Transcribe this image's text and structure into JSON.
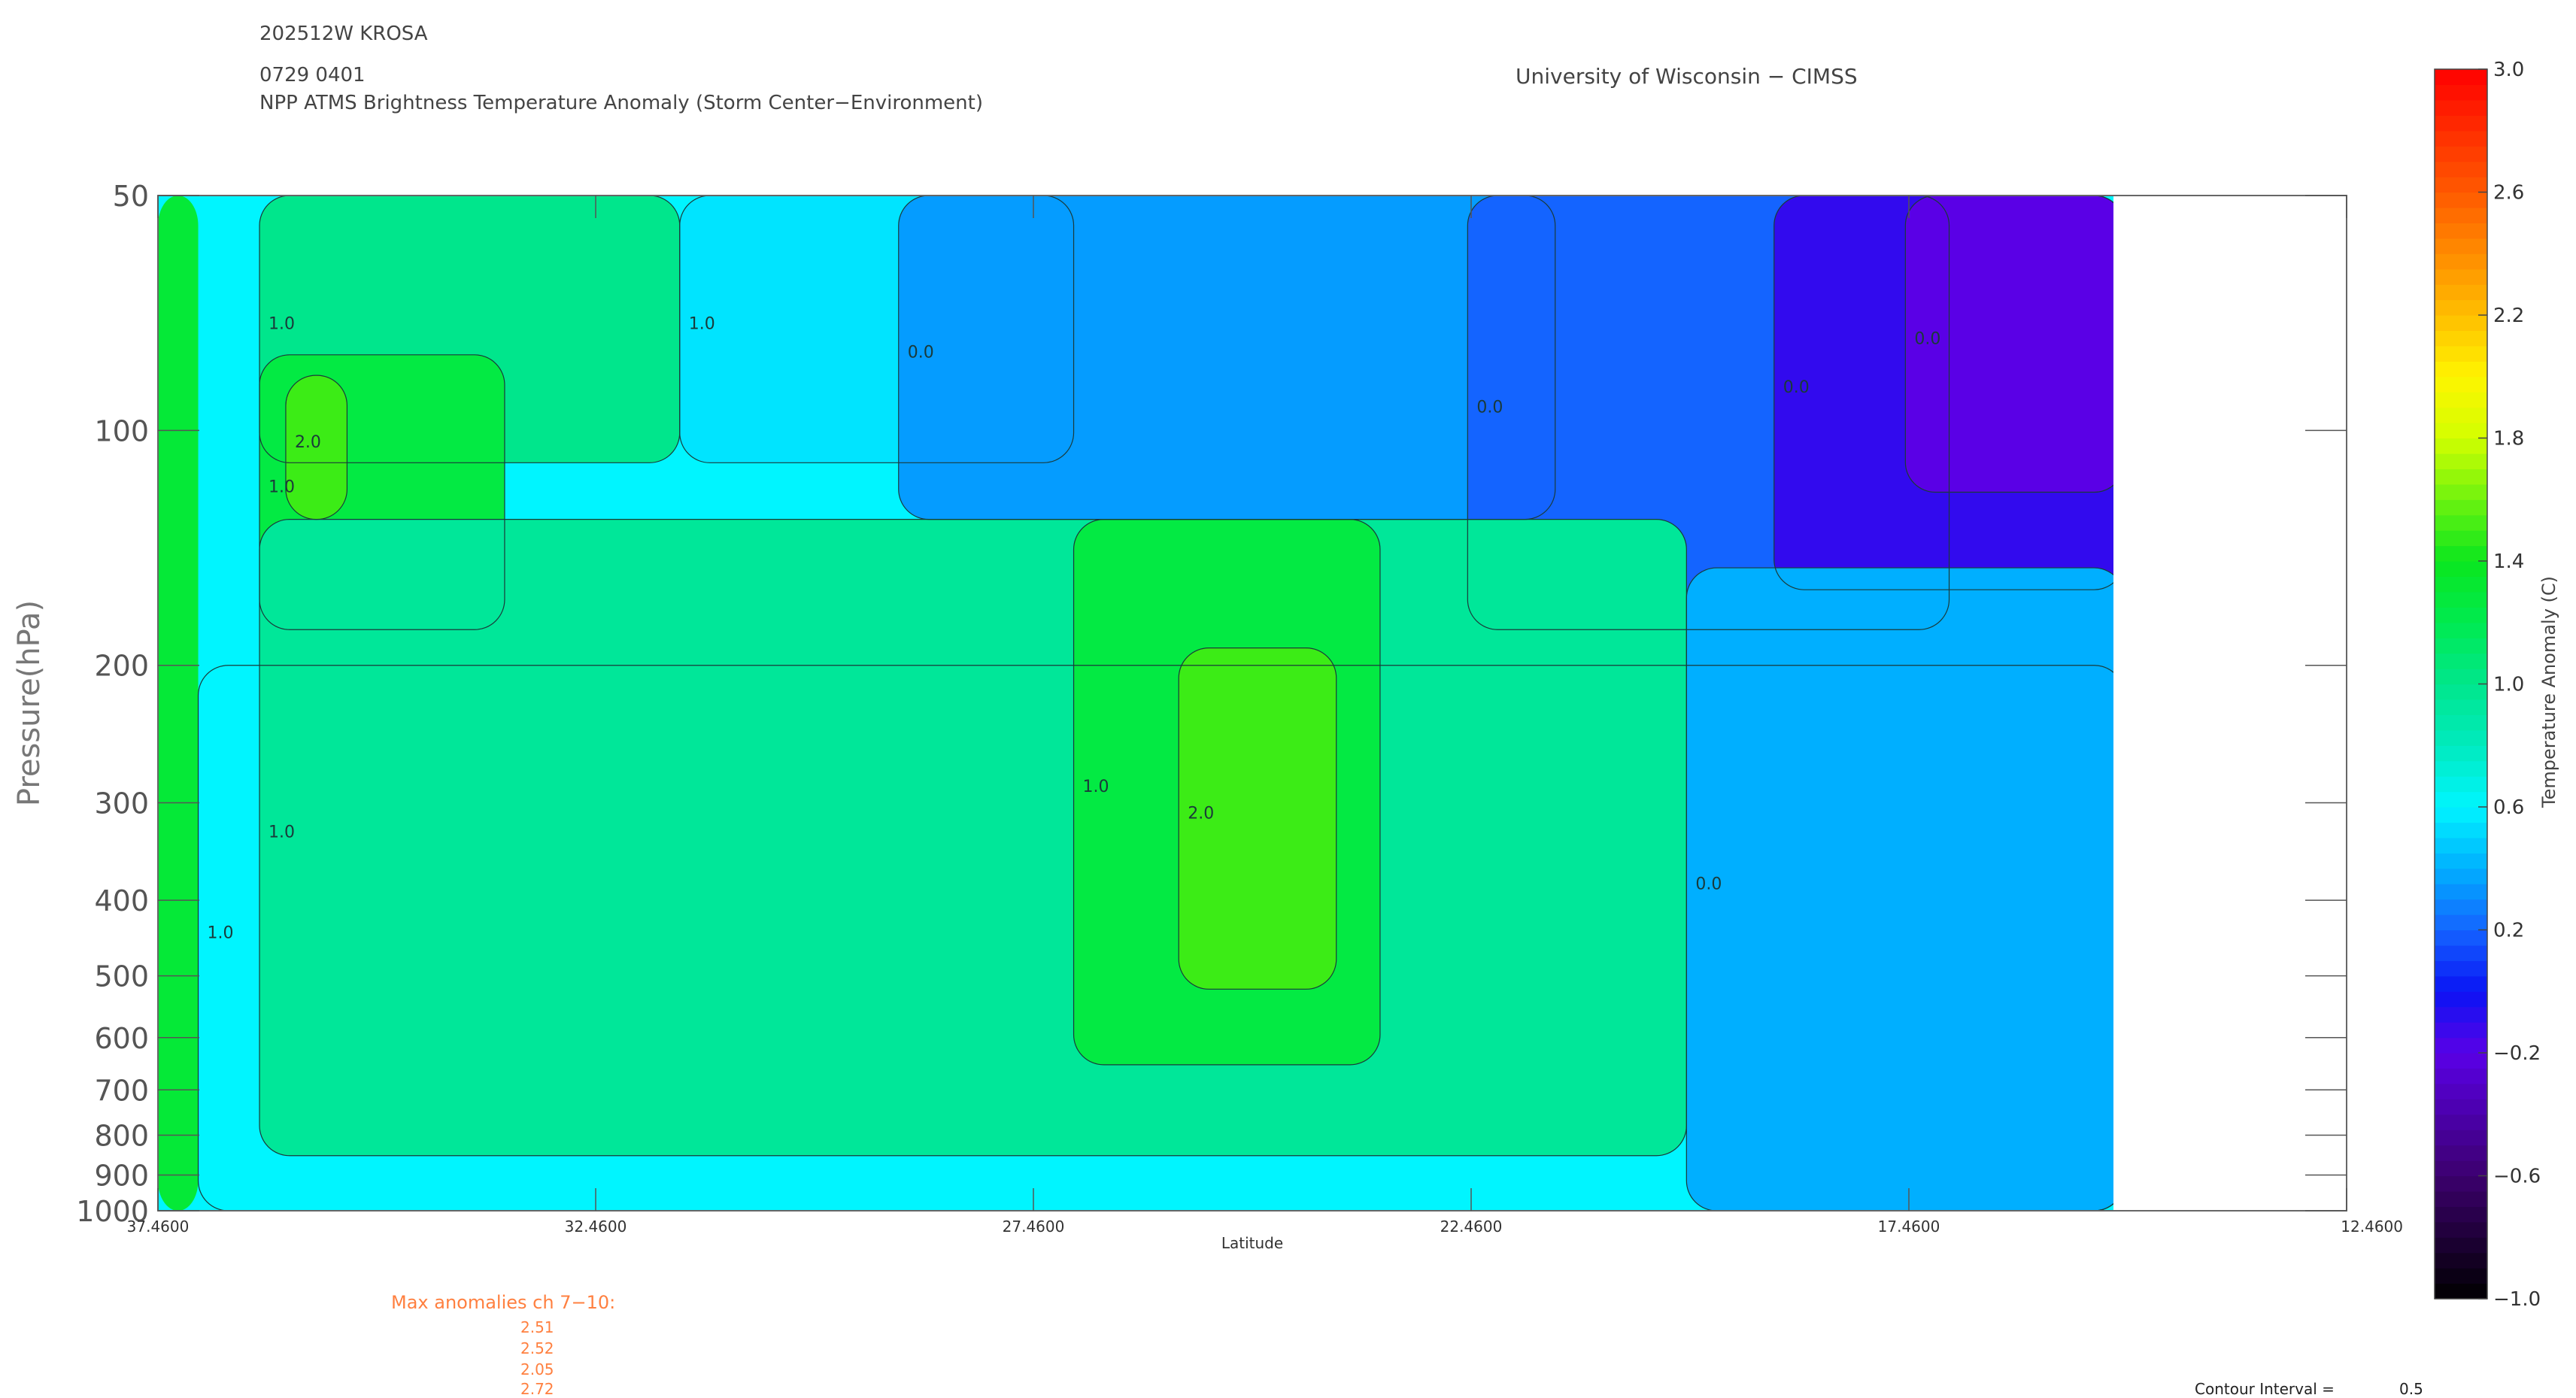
{
  "header": {
    "storm_id": "202512W KROSA",
    "datetime": "0729 0401",
    "product": "NPP ATMS Brightness Temperature Anomaly (Storm Center−Environment)",
    "institution": "University of Wisconsin − CIMSS"
  },
  "chart_data": {
    "type": "heatmap",
    "title": "NPP ATMS Brightness Temperature Anomaly (Storm Center−Environment)",
    "xlabel": "Latitude",
    "ylabel": "Pressure(hPa)",
    "x_ticks": [
      "37.4600",
      "32.4600",
      "27.4600",
      "22.4600",
      "17.4600",
      "12.4600"
    ],
    "xlim": [
      37.46,
      12.46
    ],
    "data_lat_range": [
      37.46,
      15.0
    ],
    "y_ticks": [
      "50",
      "100",
      "200",
      "300",
      "400",
      "500",
      "600",
      "700",
      "800",
      "900",
      "1000"
    ],
    "y_tick_values": [
      50,
      100,
      200,
      300,
      400,
      500,
      600,
      700,
      800,
      900,
      1000
    ],
    "ylim": [
      1000,
      50
    ],
    "y_scale": "log",
    "colorbar": {
      "label": "Temperature Anomaly (C)",
      "ticks": [
        "3.0",
        "2.6",
        "2.2",
        "1.8",
        "1.4",
        "1.0",
        "0.6",
        "0.2",
        "−0.2",
        "−0.6",
        "−1.0"
      ],
      "tick_values": [
        3.0,
        2.6,
        2.2,
        1.8,
        1.4,
        1.0,
        0.6,
        0.2,
        -0.2,
        -0.6,
        -1.0
      ],
      "range": [
        -1.0,
        3.0
      ]
    },
    "contour_labels": [
      "2.0",
      "1.0",
      "0.0"
    ],
    "contour_interval_label": "Contour Interval =",
    "contour_interval": "0.5",
    "max_anomalies_label": "Max anomalies ch 7−10:",
    "max_anomalies": [
      "2.51",
      "2.52",
      "2.05",
      "2.72"
    ],
    "region_values": [
      {
        "lat": [
          37.46,
          37.0
        ],
        "p": [
          50,
          1000
        ],
        "v": 1.3
      },
      {
        "lat": [
          36.3,
          31.5
        ],
        "p": [
          50,
          110
        ],
        "v": 1.0
      },
      {
        "lat": [
          36.3,
          33.5
        ],
        "p": [
          80,
          180
        ],
        "v": 1.25
      },
      {
        "lat": [
          36.0,
          35.3
        ],
        "p": [
          85,
          130
        ],
        "v": 1.5
      },
      {
        "lat": [
          31.5,
          27.0
        ],
        "p": [
          50,
          110
        ],
        "v": 0.55
      },
      {
        "lat": [
          29.0,
          21.5
        ],
        "p": [
          50,
          130
        ],
        "v": 0.35
      },
      {
        "lat": [
          22.5,
          17.0
        ],
        "p": [
          50,
          180
        ],
        "v": 0.2
      },
      {
        "lat": [
          19.0,
          15.0
        ],
        "p": [
          50,
          160
        ],
        "v": -0.1
      },
      {
        "lat": [
          17.5,
          15.0
        ],
        "p": [
          50,
          120
        ],
        "v": -0.2
      },
      {
        "lat": [
          37.0,
          15.0
        ],
        "p": [
          200,
          1000
        ],
        "v": 0.6
      },
      {
        "lat": [
          36.3,
          20.0
        ],
        "p": [
          130,
          850
        ],
        "v": 0.95
      },
      {
        "lat": [
          27.0,
          23.5
        ],
        "p": [
          130,
          650
        ],
        "v": 1.25
      },
      {
        "lat": [
          25.8,
          24.0
        ],
        "p": [
          190,
          520
        ],
        "v": 1.5
      },
      {
        "lat": [
          20.0,
          15.0
        ],
        "p": [
          150,
          1000
        ],
        "v": 0.4
      }
    ]
  }
}
